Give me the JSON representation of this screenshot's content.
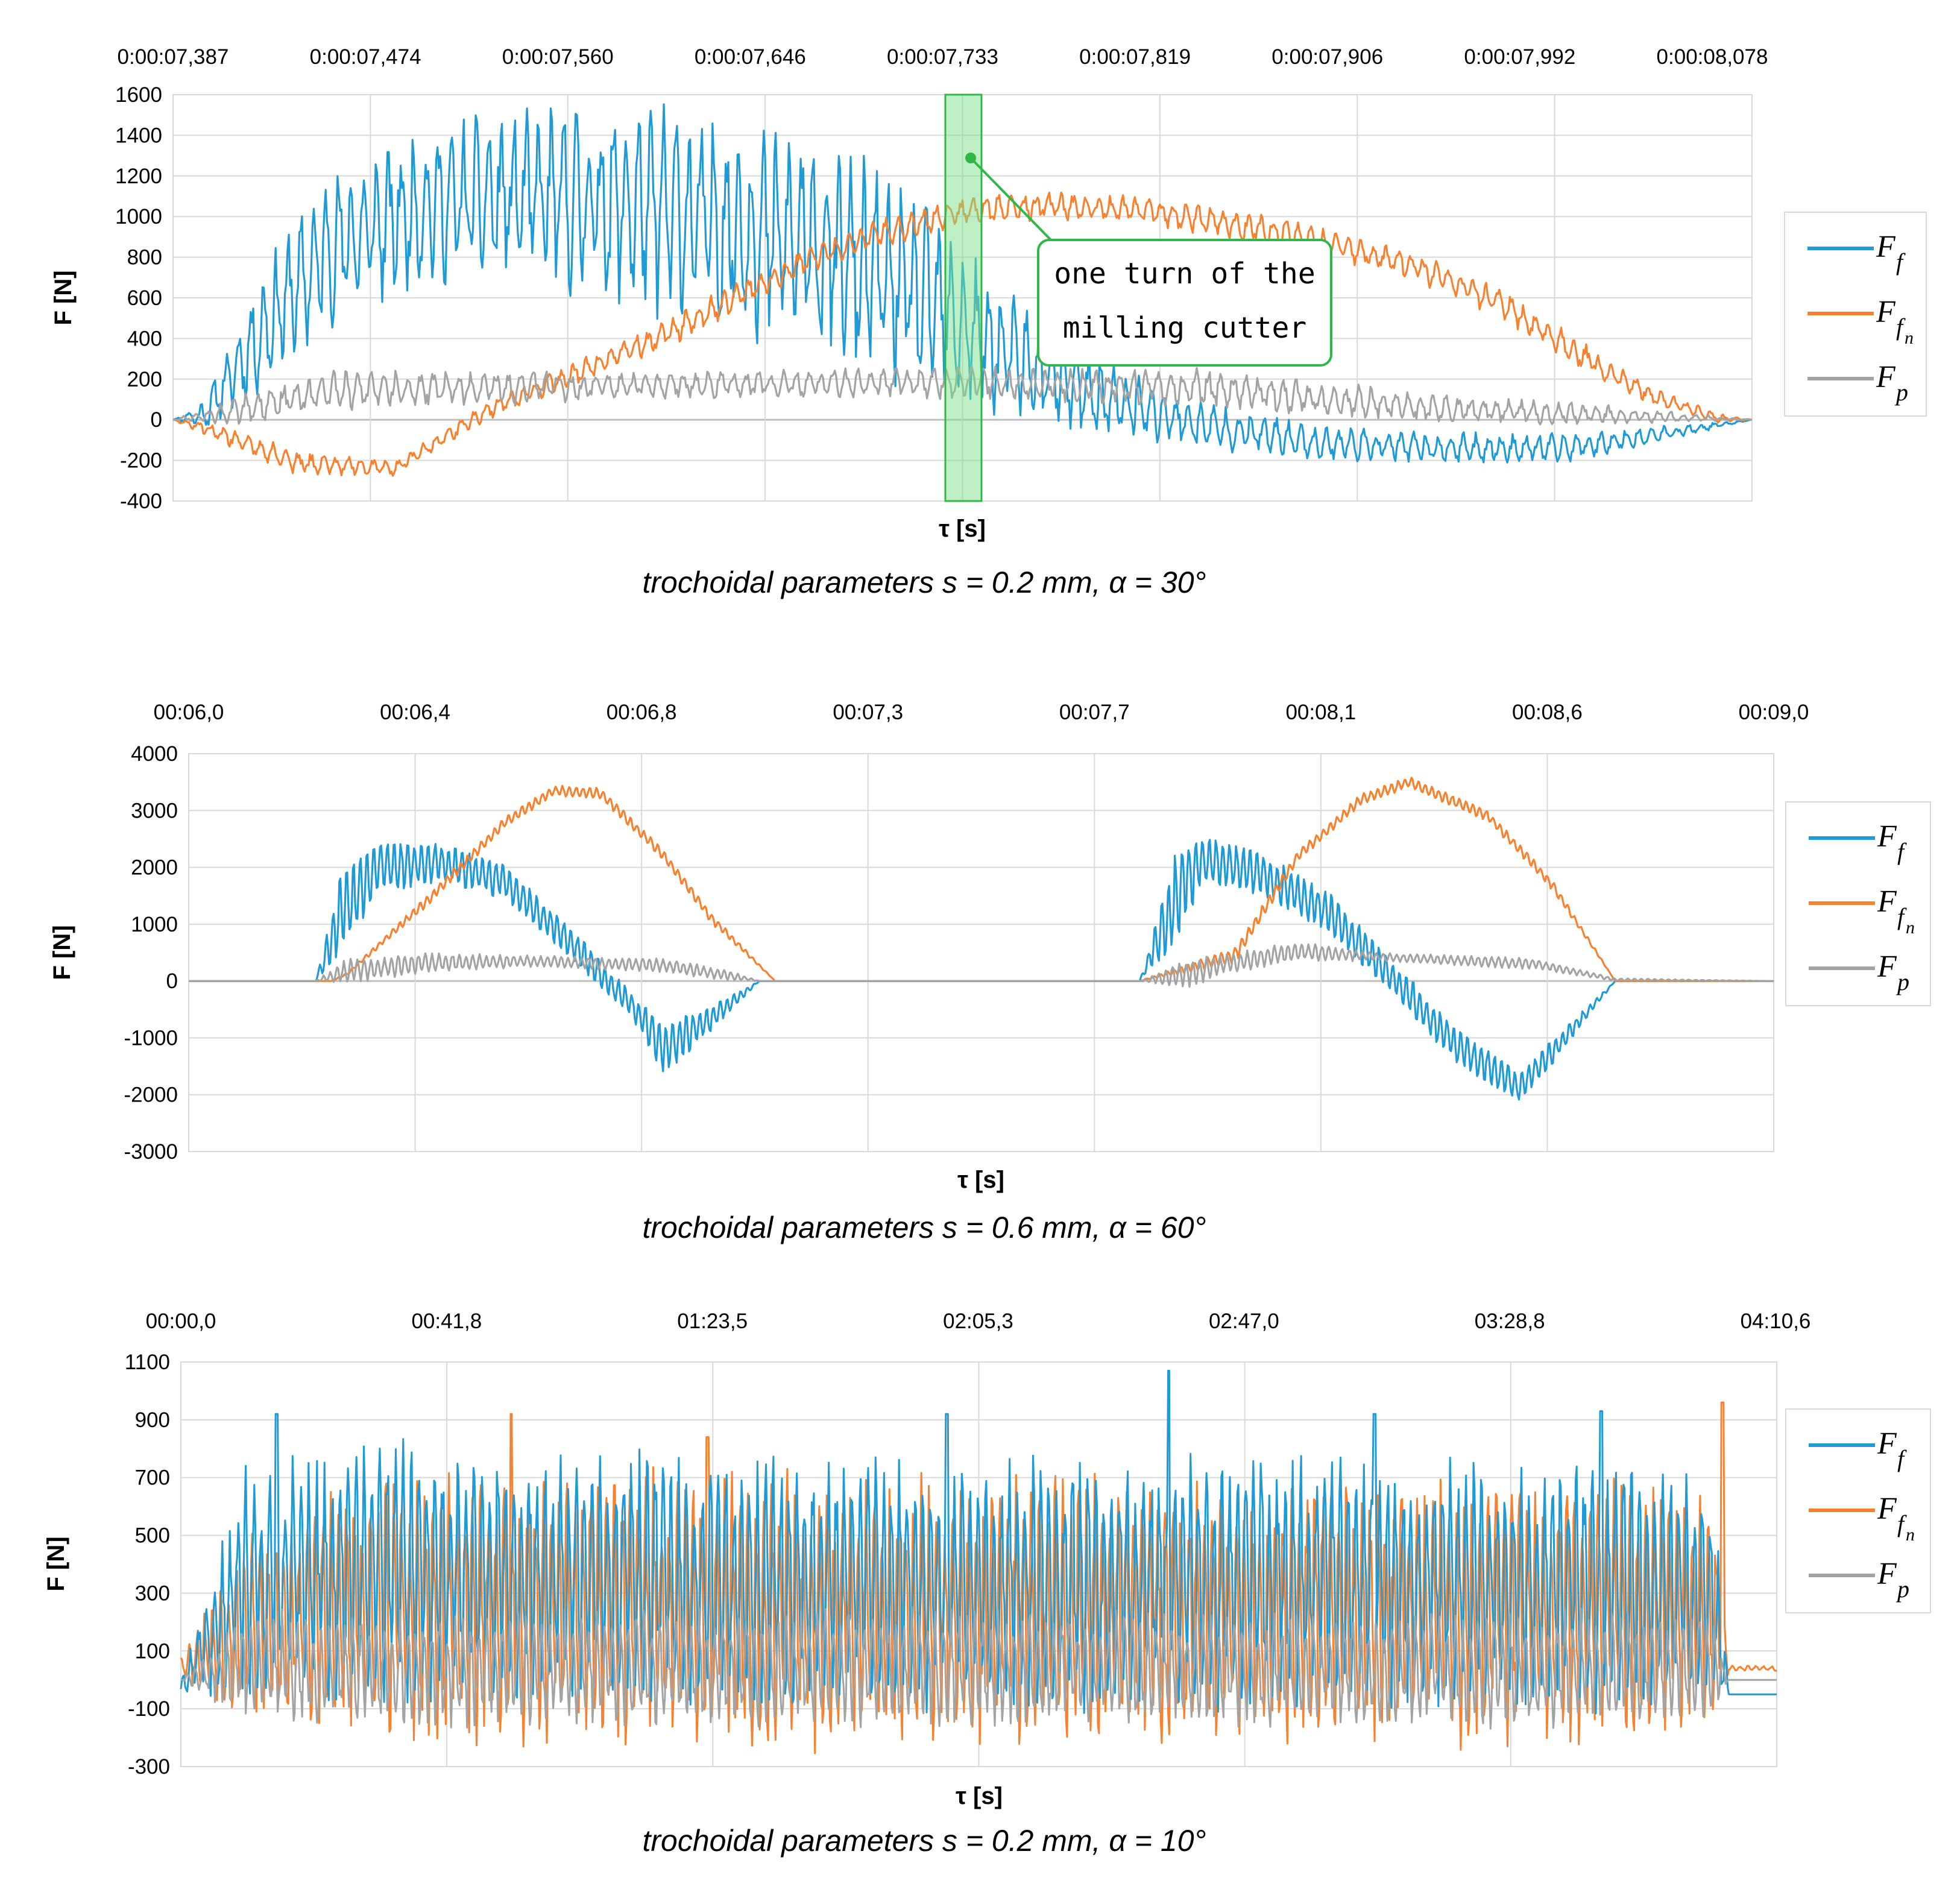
{
  "colors": {
    "ff": "#1f9ad6",
    "ffn": "#f7812e",
    "fp": "#a3a3a3",
    "grid": "#d9d9d9",
    "highlight": "#7ee08c",
    "callout": "#2fb84a"
  },
  "chart_data": [
    {
      "id": "top",
      "type": "line",
      "x_tick_labels": [
        "0:00:07,387",
        "0:00:07,474",
        "0:00:07,560",
        "0:00:07,646",
        "0:00:07,733",
        "0:00:07,819",
        "0:00:07,906",
        "0:00:07,992",
        "0:00:08,078"
      ],
      "ylim": [
        -400,
        1600
      ],
      "yticks": [
        1600,
        1400,
        1200,
        1000,
        800,
        600,
        400,
        200,
        0,
        -200,
        -400
      ],
      "ylabel": "F [N]",
      "xlabel": "τ [s]",
      "caption": "trochoidal parameters s = 0.2 mm, α = 30°",
      "annotation": "one turn of the milling cutter",
      "annotation_lines": [
        "one turn of the",
        "milling cutter"
      ],
      "series": [
        {
          "name": "Ff",
          "main": "F",
          "sub": "f",
          "color": "#1f9ad6",
          "envelope": {
            "t": [
              0.0,
              0.02,
              0.06,
              0.1,
              0.16,
              0.22,
              0.3,
              0.4,
              0.44,
              0.48,
              0.52,
              0.58,
              0.65,
              0.72,
              0.8,
              0.88,
              0.94,
              1.0
            ],
            "hi": [
              0,
              100,
              800,
              1250,
              1450,
              1560,
              1580,
              1450,
              1300,
              1050,
              700,
              350,
              100,
              -20,
              -60,
              -60,
              -30,
              0
            ],
            "lo": [
              0,
              -50,
              150,
              450,
              650,
              650,
              500,
              300,
              150,
              100,
              0,
              -100,
              -150,
              -200,
              -220,
              -220,
              -120,
              0
            ]
          }
        },
        {
          "name": "Ffn",
          "main": "F",
          "sub": "fn",
          "color": "#f7812e",
          "envelope": {
            "t": [
              0.0,
              0.02,
              0.08,
              0.14,
              0.2,
              0.3,
              0.4,
              0.45,
              0.5,
              0.55,
              0.62,
              0.7,
              0.78,
              0.84,
              0.9,
              0.94,
              0.98,
              1.0
            ],
            "hi": [
              0,
              0,
              -150,
              -200,
              100,
              450,
              850,
              1000,
              1100,
              1130,
              1100,
              1000,
              850,
              650,
              350,
              150,
              30,
              0
            ],
            "lo": [
              0,
              -80,
              -280,
              -280,
              0,
              300,
              700,
              850,
              950,
              980,
              950,
              850,
              700,
              500,
              200,
              60,
              -20,
              0
            ]
          }
        },
        {
          "name": "Fp",
          "main": "F",
          "sub": "p",
          "color": "#a3a3a3",
          "envelope": {
            "t": [
              0.0,
              0.04,
              0.1,
              0.3,
              0.5,
              0.65,
              0.8,
              0.9,
              1.0
            ],
            "hi": [
              0,
              120,
              250,
              240,
              270,
              260,
              130,
              80,
              0
            ],
            "lo": [
              0,
              -40,
              40,
              100,
              100,
              50,
              -20,
              -30,
              0
            ]
          }
        }
      ]
    },
    {
      "id": "middle",
      "type": "line",
      "x_tick_labels": [
        "00:06,0",
        "00:06,4",
        "00:06,8",
        "00:07,3",
        "00:07,7",
        "00:08,1",
        "00:08,6",
        "00:09,0"
      ],
      "ylim": [
        -3000,
        4000
      ],
      "yticks": [
        4000,
        3000,
        2000,
        1000,
        0,
        -1000,
        -2000,
        -3000
      ],
      "ylabel": "F [N]",
      "xlabel": "τ [s]",
      "caption": "trochoidal parameters s = 0.6 mm, α = 60°",
      "series": [
        {
          "name": "Ff",
          "main": "F",
          "sub": "f",
          "color": "#1f9ad6",
          "envelope": {
            "t": [
              0.0,
              0.08,
              0.095,
              0.12,
              0.16,
              0.2,
              0.24,
              0.28,
              0.3,
              0.33,
              0.36,
              0.6,
              0.625,
              0.64,
              0.68,
              0.72,
              0.76,
              0.8,
              0.84,
              0.86,
              0.9,
              1.0
            ],
            "hi": [
              0,
              0,
              1900,
              2550,
              2450,
              2100,
              1000,
              -200,
              -700,
              -400,
              0,
              0,
              2600,
              2600,
              2300,
              1600,
              400,
              -800,
              -1600,
              -1000,
              0,
              0
            ],
            "lo": [
              0,
              0,
              300,
              1500,
              1700,
              1400,
              400,
              -700,
              -1700,
              -900,
              0,
              0,
              600,
              1700,
              1400,
              800,
              -300,
              -1500,
              -2150,
              -1500,
              0,
              0
            ]
          }
        },
        {
          "name": "Ffn",
          "main": "F",
          "sub": "fn",
          "color": "#f7812e",
          "envelope": {
            "t": [
              0.0,
              0.09,
              0.1,
              0.15,
              0.2,
              0.23,
              0.26,
              0.3,
              0.33,
              0.37,
              0.6,
              0.66,
              0.7,
              0.74,
              0.77,
              0.82,
              0.86,
              0.9,
              1.0
            ],
            "hi": [
              0,
              0,
              150,
              1500,
              2900,
              3450,
              3400,
              2300,
              1200,
              0,
              0,
              600,
              2300,
              3300,
              3600,
              3000,
              1800,
              0,
              0
            ],
            "lo": [
              0,
              0,
              100,
              1300,
              2700,
              3250,
              3200,
              2100,
              1000,
              0,
              0,
              300,
              2100,
              3100,
              3400,
              2800,
              1600,
              0,
              0
            ]
          }
        },
        {
          "name": "Fp",
          "main": "F",
          "sub": "p",
          "color": "#a3a3a3",
          "envelope": {
            "t": [
              0.0,
              0.08,
              0.1,
              0.15,
              0.22,
              0.3,
              0.34,
              0.36,
              0.6,
              0.63,
              0.65,
              0.7,
              0.75,
              0.85,
              0.9,
              1.0
            ],
            "hi": [
              0,
              0,
              400,
              500,
              450,
              400,
              200,
              0,
              0,
              400,
              450,
              700,
              500,
              400,
              50,
              0
            ],
            "lo": [
              0,
              0,
              -50,
              150,
              250,
              150,
              0,
              0,
              0,
              -150,
              100,
              350,
              350,
              200,
              0,
              0
            ]
          }
        }
      ]
    },
    {
      "id": "bottom",
      "type": "line",
      "x_tick_labels": [
        "00:00,0",
        "00:41,8",
        "01:23,5",
        "02:05,3",
        "02:47,0",
        "03:28,8",
        "04:10,6"
      ],
      "ylim": [
        -300,
        1100
      ],
      "yticks": [
        1100,
        900,
        700,
        500,
        300,
        100,
        -100,
        -300
      ],
      "ylabel": "F [N]",
      "xlabel": "τ [s]",
      "caption": "trochoidal parameters s = 0.2 mm, α = 10°",
      "series": [
        {
          "name": "Ff",
          "main": "F",
          "sub": "f",
          "color": "#1f9ad6",
          "envelope": {
            "t": [
              0.0,
              0.04,
              0.1,
              0.3,
              0.5,
              0.7,
              0.9,
              0.96,
              0.97,
              1.0
            ],
            "hi": [
              0,
              750,
              850,
              800,
              780,
              800,
              780,
              700,
              -50,
              -50
            ],
            "lo": [
              -50,
              -80,
              -100,
              -120,
              -120,
              -120,
              -120,
              -100,
              -50,
              -50
            ]
          }
        },
        {
          "name": "Ffn",
          "main": "F",
          "sub": "fn",
          "color": "#f7812e",
          "envelope": {
            "t": [
              0.0,
              0.04,
              0.1,
              0.3,
              0.5,
              0.7,
              0.9,
              0.96,
              0.97,
              1.0
            ],
            "hi": [
              100,
              500,
              700,
              750,
              720,
              740,
              720,
              700,
              50,
              50
            ],
            "lo": [
              0,
              -150,
              -220,
              -260,
              -260,
              -260,
              -240,
              -220,
              30,
              30
            ]
          }
        },
        {
          "name": "Fp",
          "main": "F",
          "sub": "p",
          "color": "#a3a3a3",
          "envelope": {
            "t": [
              0.0,
              0.04,
              0.1,
              0.3,
              0.5,
              0.7,
              0.9,
              0.96,
              0.97,
              1.0
            ],
            "hi": [
              0,
              250,
              240,
              260,
              250,
              250,
              250,
              250,
              0,
              0
            ],
            "lo": [
              0,
              -150,
              -170,
              -170,
              -170,
              -170,
              -170,
              -150,
              0,
              0
            ]
          }
        }
      ],
      "spikes": [
        {
          "t": 0.06,
          "series": "Ff",
          "v": 920
        },
        {
          "t": 0.207,
          "series": "Ffn",
          "v": 920
        },
        {
          "t": 0.33,
          "series": "Ffn",
          "v": 840
        },
        {
          "t": 0.48,
          "series": "Ff",
          "v": 920
        },
        {
          "t": 0.619,
          "series": "Ff",
          "v": 1070
        },
        {
          "t": 0.748,
          "series": "Ff",
          "v": 920
        },
        {
          "t": 0.89,
          "series": "Ff",
          "v": 930
        },
        {
          "t": 0.966,
          "series": "Ffn",
          "v": 960
        }
      ]
    }
  ]
}
